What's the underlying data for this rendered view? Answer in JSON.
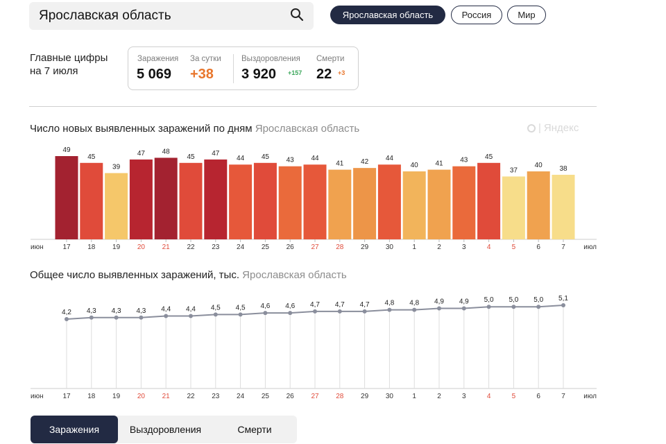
{
  "search": {
    "value": "Ярославская область"
  },
  "region_tabs": [
    "Ярославская область",
    "Россия",
    "Мир"
  ],
  "summary": {
    "title_line1": "Главные цифры",
    "title_line2": "на 7 июля",
    "infections_label": "Заражения",
    "infections_value": "5 069",
    "daily_label": "За сутки",
    "daily_value": "+38",
    "recoveries_label": "Выздоровления",
    "recoveries_value": "3 920",
    "recoveries_delta": "+157",
    "deaths_label": "Смерти",
    "deaths_value": "22",
    "deaths_delta": "+3"
  },
  "watermark": "Яндекс",
  "bottom_tabs": [
    "Заражения",
    "Выздоровления",
    "Смерти"
  ],
  "colors": {
    "accent_dark": "#222a43",
    "orange": "#e8762c",
    "green": "#3aa65a",
    "weekend_red": "#e04b3a",
    "line_gray": "#8a8e9c"
  },
  "chart_data": [
    {
      "type": "bar",
      "title": "Число новых выявленных заражений по дням",
      "subtitle": "Ярославская область",
      "start_label": "июн",
      "end_label": "июл",
      "categories": [
        "17",
        "18",
        "19",
        "20",
        "21",
        "22",
        "23",
        "24",
        "25",
        "26",
        "27",
        "28",
        "29",
        "30",
        "1",
        "2",
        "3",
        "4",
        "5",
        "6",
        "7"
      ],
      "weekend": [
        false,
        false,
        false,
        true,
        true,
        false,
        false,
        false,
        false,
        false,
        true,
        true,
        false,
        false,
        false,
        false,
        false,
        true,
        true,
        false,
        false
      ],
      "values": [
        49,
        45,
        39,
        47,
        48,
        45,
        47,
        44,
        45,
        43,
        44,
        41,
        42,
        44,
        40,
        41,
        43,
        45,
        37,
        40,
        38
      ],
      "bar_colors": [
        "#a32230",
        "#e04b3a",
        "#f5c76a",
        "#b72530",
        "#a32230",
        "#e04b3a",
        "#b72530",
        "#e6583a",
        "#e04b3a",
        "#ea6a3b",
        "#e6583a",
        "#f0a24f",
        "#ed9548",
        "#e6583a",
        "#f2b45b",
        "#f0a24f",
        "#ea6a3b",
        "#e04b3a",
        "#f7dd8a",
        "#f0a24f",
        "#f7dd8a"
      ]
    },
    {
      "type": "line",
      "title": "Общее число выявленных заражений, тыс.",
      "subtitle": "Ярославская область",
      "start_label": "июн",
      "end_label": "июл",
      "categories": [
        "17",
        "18",
        "19",
        "20",
        "21",
        "22",
        "23",
        "24",
        "25",
        "26",
        "27",
        "28",
        "29",
        "30",
        "1",
        "2",
        "3",
        "4",
        "5",
        "6",
        "7"
      ],
      "weekend": [
        false,
        false,
        false,
        true,
        true,
        false,
        false,
        false,
        false,
        false,
        true,
        true,
        false,
        false,
        false,
        false,
        false,
        true,
        true,
        false,
        false
      ],
      "values": [
        4.2,
        4.3,
        4.3,
        4.3,
        4.4,
        4.4,
        4.5,
        4.5,
        4.6,
        4.6,
        4.7,
        4.7,
        4.7,
        4.8,
        4.8,
        4.9,
        4.9,
        5.0,
        5.0,
        5.0,
        5.1
      ],
      "labels": [
        "4,2",
        "4,3",
        "4,3",
        "4,3",
        "4,4",
        "4,4",
        "4,5",
        "4,5",
        "4,6",
        "4,6",
        "4,7",
        "4,7",
        "4,7",
        "4,8",
        "4,8",
        "4,9",
        "4,9",
        "5,0",
        "5,0",
        "5,0",
        "5,1"
      ]
    }
  ]
}
